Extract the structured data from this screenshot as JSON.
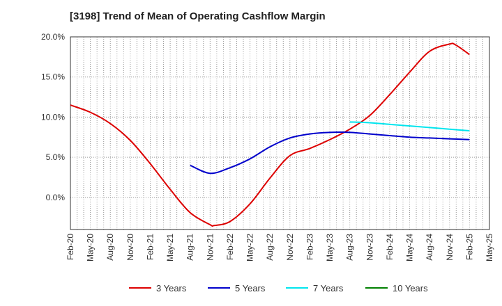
{
  "chart_data": {
    "type": "line",
    "title": "[3198]  Trend of Mean of Operating Cashflow Margin",
    "xlabel": "",
    "ylabel": "",
    "x_ticks": [
      "Feb-20",
      "May-20",
      "Aug-20",
      "Nov-20",
      "Feb-21",
      "May-21",
      "Aug-21",
      "Nov-21",
      "Feb-22",
      "May-22",
      "Aug-22",
      "Nov-22",
      "Feb-23",
      "May-23",
      "Aug-23",
      "Nov-23",
      "Feb-24",
      "May-24",
      "Aug-24",
      "Nov-24",
      "Feb-25",
      "May-25"
    ],
    "y_ticks": [
      "20.0%",
      "15.0%",
      "10.0%",
      "5.0%",
      "0.0%"
    ],
    "ylim": [
      -4.0,
      20.0
    ],
    "grid": true,
    "legend_position": "bottom",
    "series": [
      {
        "name": "3 Years",
        "color": "#dd0000",
        "x": [
          0,
          1,
          2,
          3,
          4,
          5,
          6,
          7,
          7.2,
          8,
          9,
          10,
          11,
          12,
          13,
          14,
          15,
          16,
          17,
          18,
          19,
          19.3,
          20
        ],
        "values": [
          11.5,
          10.6,
          9.2,
          7.1,
          4.2,
          1.0,
          -1.9,
          -3.4,
          -3.5,
          -3.0,
          -0.8,
          2.4,
          5.2,
          6.1,
          7.2,
          8.5,
          10.2,
          12.8,
          15.6,
          18.2,
          19.1,
          19.0,
          17.8
        ]
      },
      {
        "name": "5 Years",
        "color": "#0000cc",
        "x": [
          6,
          7,
          8,
          9,
          10,
          11,
          12,
          13,
          14,
          15,
          16,
          17,
          18,
          19,
          20
        ],
        "values": [
          4.0,
          3.0,
          3.7,
          4.8,
          6.3,
          7.4,
          7.9,
          8.1,
          8.1,
          7.9,
          7.7,
          7.5,
          7.4,
          7.3,
          7.2
        ]
      },
      {
        "name": "7 Years",
        "color": "#00e5ee",
        "x": [
          14,
          15,
          16,
          17,
          18,
          19,
          20
        ],
        "values": [
          9.4,
          9.3,
          9.1,
          8.9,
          8.7,
          8.5,
          8.3
        ]
      },
      {
        "name": "10 Years",
        "color": "#008000",
        "x": [],
        "values": []
      }
    ]
  }
}
